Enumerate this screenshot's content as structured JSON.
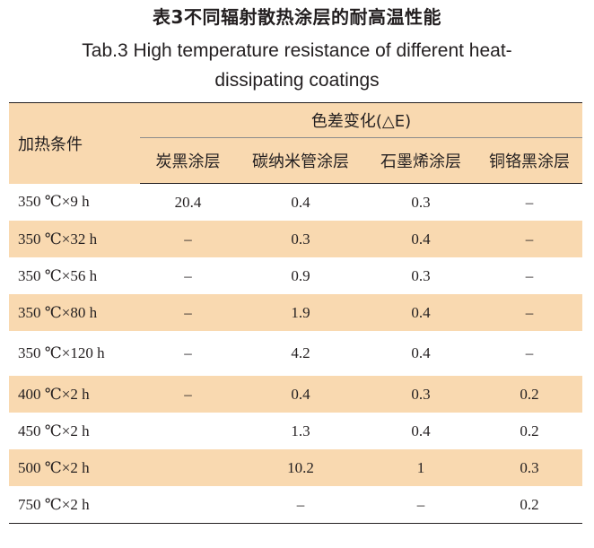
{
  "title_cn": "表3不同辐射散热涂层的耐高温性能",
  "title_en": "Tab.3 High temperature resistance of different heat-dissipating coatings",
  "table": {
    "row_header": "加热条件",
    "group_header": "色差变化(△E)",
    "columns": [
      "炭黑涂层",
      "碳纳米管涂层",
      "石墨烯涂层",
      "铜铬黑涂层"
    ],
    "rows": [
      {
        "cond": "350 ℃×9 h",
        "values": [
          "20.4",
          "0.4",
          "0.3",
          "–"
        ]
      },
      {
        "cond": "350 ℃×32 h",
        "values": [
          "–",
          "0.3",
          "0.4",
          "–"
        ]
      },
      {
        "cond": "350 ℃×56 h",
        "values": [
          "–",
          "0.9",
          "0.3",
          "–"
        ]
      },
      {
        "cond": "350 ℃×80 h",
        "values": [
          "–",
          "1.9",
          "0.4",
          "–"
        ]
      },
      {
        "cond": "350 ℃×120 h",
        "values": [
          "–",
          "4.2",
          "0.4",
          "–"
        ]
      },
      {
        "cond": "400 ℃×2 h",
        "values": [
          "–",
          "0.4",
          "0.3",
          "0.2"
        ]
      },
      {
        "cond": "450 ℃×2 h",
        "values": [
          "",
          "1.3",
          "0.4",
          "0.2"
        ]
      },
      {
        "cond": "500 ℃×2 h",
        "values": [
          "",
          "10.2",
          "1",
          "0.3"
        ]
      },
      {
        "cond": "750 ℃×2 h",
        "values": [
          "",
          "–",
          "–",
          "0.2"
        ]
      }
    ]
  }
}
